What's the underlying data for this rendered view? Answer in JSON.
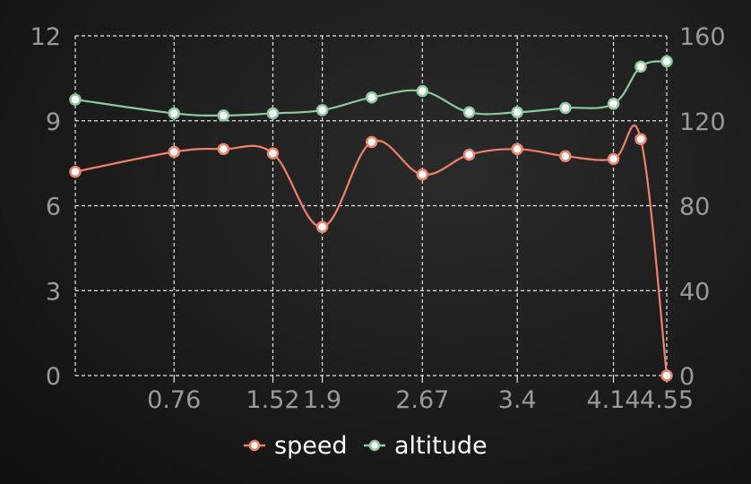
{
  "chart_data": {
    "type": "line",
    "smooth": true,
    "x": [
      0,
      0.76,
      1.14,
      1.52,
      1.9,
      2.28,
      2.67,
      3.03,
      3.4,
      3.77,
      4.14,
      4.35,
      4.55
    ],
    "x_tick_labels": [
      "0.76",
      "1.52",
      "1.9",
      "2.67",
      "3.4",
      "4.14",
      "4.55"
    ],
    "x_tick_values": [
      0.76,
      1.52,
      1.9,
      2.67,
      3.4,
      4.14,
      4.55
    ],
    "y_left": {
      "ticks": [
        "0",
        "3",
        "6",
        "9",
        "12"
      ],
      "ylim": [
        0,
        12
      ]
    },
    "y_right": {
      "ticks": [
        "0",
        "40",
        "80",
        "120",
        "160"
      ],
      "ylim": [
        0,
        160
      ]
    },
    "grid": true,
    "legend_position": "bottom-center",
    "series": [
      {
        "name": "speed",
        "axis": "left",
        "color": "#f0826a",
        "values": [
          7.2,
          7.9,
          8.0,
          7.85,
          5.25,
          8.25,
          7.1,
          7.8,
          8.0,
          7.75,
          7.65,
          8.35,
          0
        ]
      },
      {
        "name": "altitude",
        "axis": "right",
        "color": "#8ec9a0",
        "values": [
          130,
          123.5,
          122.5,
          123.5,
          125,
          131,
          134,
          124,
          124,
          126,
          128,
          145.5,
          148
        ]
      }
    ]
  }
}
